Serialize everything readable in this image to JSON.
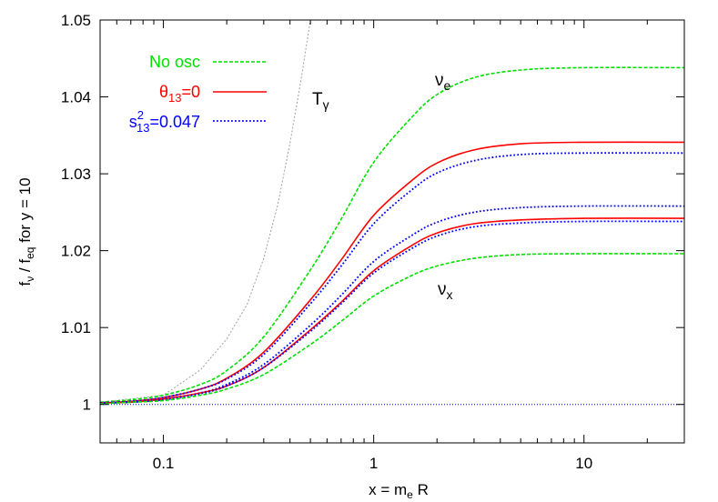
{
  "chart_data": {
    "type": "line",
    "xlabel": "x = m",
    "xlabel_sub": "e",
    "xlabel_tail": " R",
    "ylabel": "f",
    "ylabel_sub1": "ν",
    "ylabel_mid": " / f",
    "ylabel_sub2": "eq",
    "ylabel_tail": " for y = 10",
    "xscale": "log",
    "xlim": [
      0.05,
      30
    ],
    "ylim": [
      0.995,
      1.05
    ],
    "xticks": [
      0.1,
      1,
      10
    ],
    "xtick_labels": [
      "0.1",
      "1",
      "10"
    ],
    "yticks": [
      1,
      1.01,
      1.02,
      1.03,
      1.04,
      1.05
    ],
    "ytick_labels": [
      "1",
      "1.01",
      "1.02",
      "1.03",
      "1.04",
      "1.05"
    ],
    "grid": false,
    "legend_placement": "top-left",
    "legend": [
      {
        "label": "No osc",
        "color": "#00e000",
        "style": "dashed"
      },
      {
        "label": "θ",
        "sub": "13",
        "tail": "=0",
        "color": "#ff0000",
        "style": "solid"
      },
      {
        "label": "s",
        "sup": "2",
        "sub": "13",
        "tail": "=0.047",
        "color": "#0000ff",
        "style": "dotted"
      }
    ],
    "annotations": [
      {
        "text": "ν",
        "sub": "e"
      },
      {
        "text": "ν",
        "sub": "x"
      },
      {
        "text": "T",
        "sub": "γ"
      }
    ],
    "x": [
      0.05,
      0.07,
      0.1,
      0.15,
      0.2,
      0.3,
      0.5,
      0.7,
      1,
      1.5,
      2,
      3,
      5,
      10,
      30
    ],
    "series": [
      {
        "group": "No osc",
        "flavor": "e",
        "color": "#00e000",
        "style": "dashed",
        "values": [
          1.0003,
          1.0006,
          1.0012,
          1.0026,
          1.0044,
          1.0088,
          1.0175,
          1.0241,
          1.0315,
          1.0372,
          1.0403,
          1.0425,
          1.0435,
          1.0438,
          1.0438
        ]
      },
      {
        "group": "θ13=0",
        "flavor": "e",
        "color": "#ff0000",
        "style": "solid",
        "values": [
          1.0002,
          1.0004,
          1.0009,
          1.002,
          1.0034,
          1.0068,
          1.0136,
          1.0188,
          1.0246,
          1.029,
          1.0314,
          1.0331,
          1.0339,
          1.0341,
          1.0341
        ]
      },
      {
        "group": "s13=0.047",
        "flavor": "e",
        "color": "#0000ff",
        "style": "dotted",
        "values": [
          1.0002,
          1.0004,
          1.0009,
          1.002,
          1.0033,
          1.0065,
          1.0131,
          1.018,
          1.0235,
          1.0278,
          1.0301,
          1.0317,
          1.0325,
          1.0327,
          1.0327
        ]
      },
      {
        "group": "s13=0.047",
        "flavor": "x",
        "color": "#0000ff",
        "style": "dotted",
        "values": [
          1.0002,
          1.0003,
          1.0007,
          1.0015,
          1.0026,
          1.0052,
          1.0103,
          1.0142,
          1.0186,
          1.0219,
          1.0237,
          1.025,
          1.0256,
          1.0258,
          1.0258
        ]
      },
      {
        "group": "θ13=0",
        "flavor": "x",
        "color": "#ff0000",
        "style": "solid",
        "values": [
          1.0002,
          1.0003,
          1.0007,
          1.0015,
          1.0024,
          1.0048,
          1.0097,
          1.0133,
          1.0174,
          1.0206,
          1.0223,
          1.0235,
          1.024,
          1.0242,
          1.0242
        ]
      },
      {
        "group": "s13=0.047",
        "flavor": "x",
        "color": "#0000ff",
        "style": "dotted",
        "values": [
          1.0002,
          1.0003,
          1.0006,
          1.0014,
          1.0024,
          1.0048,
          1.0095,
          1.0131,
          1.0171,
          1.0202,
          1.0219,
          1.0231,
          1.0236,
          1.0238,
          1.0238
        ]
      },
      {
        "group": "No osc",
        "flavor": "x",
        "color": "#00e000",
        "style": "dashed",
        "values": [
          1.0001,
          1.0003,
          1.0005,
          1.0012,
          1.002,
          1.0039,
          1.0078,
          1.0108,
          1.0141,
          1.0167,
          1.018,
          1.019,
          1.0195,
          1.0196,
          1.0196
        ]
      }
    ],
    "tgamma": {
      "color": "#a0a0a0",
      "style": "dotted",
      "x": [
        0.05,
        0.1,
        0.15,
        0.2,
        0.25,
        0.3,
        0.35,
        0.4,
        0.45,
        0.5,
        0.52
      ],
      "values": [
        1.0003,
        1.0012,
        1.0045,
        1.0085,
        1.013,
        1.019,
        1.026,
        1.034,
        1.042,
        1.05,
        1.054
      ]
    },
    "reference_line": {
      "y": 1,
      "color": "#0000ff",
      "style": "dotted"
    }
  }
}
